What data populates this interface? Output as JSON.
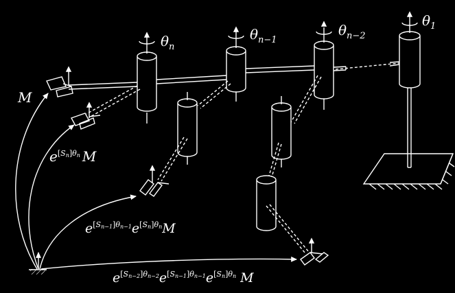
{
  "diagram": {
    "background": "#000000",
    "stroke": "#ffffff",
    "joint_labels": [
      {
        "id": "theta-n",
        "symbol": "θ",
        "subscript": "n"
      },
      {
        "id": "theta-n-1",
        "symbol": "θ",
        "subscript": "n−1"
      },
      {
        "id": "theta-n-2",
        "symbol": "θ",
        "subscript": "n−2"
      },
      {
        "id": "theta-1",
        "symbol": "θ",
        "subscript": "1"
      }
    ],
    "transform_labels": {
      "m": "M",
      "e": "e",
      "bracket_open": "[",
      "bracket_close": "]",
      "screw": "S",
      "theta": "θ",
      "idx_n": "n",
      "idx_n1": "n−1",
      "idx_n2": "n−2"
    }
  }
}
